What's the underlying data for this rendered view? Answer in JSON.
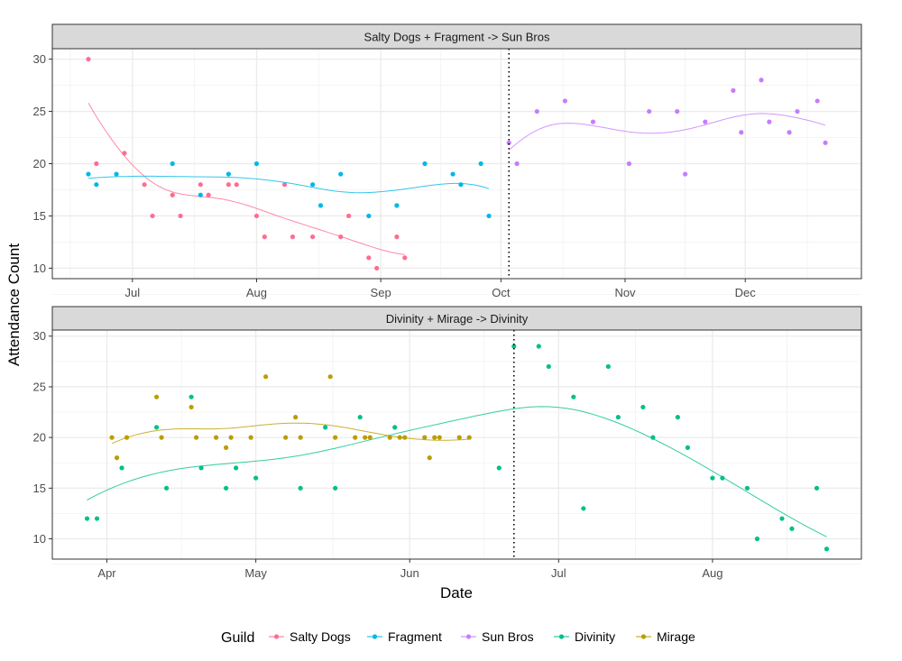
{
  "chart_data": {
    "type": "scatter",
    "xlabel": "Date",
    "ylabel": "Attendance Count",
    "legend": {
      "title": "Guild",
      "placement": "bottom",
      "entries": [
        "Salty Dogs",
        "Fragment",
        "Sun Bros",
        "Divinity",
        "Mirage"
      ]
    },
    "colors": {
      "Salty Dogs": "#FF6C91",
      "Fragment": "#00B8E7",
      "Sun Bros": "#C77CFF",
      "Divinity": "#00C08B",
      "Mirage": "#BB9D00"
    },
    "grid": true,
    "smoothing": "loess",
    "panels": [
      {
        "title": "Salty Dogs + Fragment -> Sun Bros",
        "xlim": [
          "06-11",
          "12-30"
        ],
        "x_ticks": [
          [
            "07-01",
            "Jul"
          ],
          [
            "08-01",
            "Aug"
          ],
          [
            "09-01",
            "Sep"
          ],
          [
            "10-01",
            "Oct"
          ],
          [
            "11-01",
            "Nov"
          ],
          [
            "12-01",
            "Dec"
          ]
        ],
        "y_ticks": [
          10,
          15,
          20,
          25,
          30
        ],
        "ylim": [
          9,
          31
        ],
        "merge_date": "10-03",
        "series": [
          {
            "name": "Salty Dogs",
            "points": [
              [
                "06-20",
                30
              ],
              [
                "06-22",
                20
              ],
              [
                "06-29",
                21
              ],
              [
                "07-04",
                18
              ],
              [
                "07-06",
                15
              ],
              [
                "07-11",
                17
              ],
              [
                "07-13",
                15
              ],
              [
                "07-18",
                18
              ],
              [
                "07-20",
                17
              ],
              [
                "07-25",
                18
              ],
              [
                "07-27",
                18
              ],
              [
                "08-01",
                15
              ],
              [
                "08-03",
                13
              ],
              [
                "08-08",
                18
              ],
              [
                "08-10",
                13
              ],
              [
                "08-15",
                13
              ],
              [
                "08-22",
                13
              ],
              [
                "08-24",
                15
              ],
              [
                "08-29",
                11
              ],
              [
                "08-31",
                10
              ],
              [
                "09-05",
                13
              ],
              [
                "09-07",
                11
              ]
            ]
          },
          {
            "name": "Fragment",
            "points": [
              [
                "06-20",
                19
              ],
              [
                "06-22",
                18
              ],
              [
                "06-27",
                19
              ],
              [
                "07-11",
                20
              ],
              [
                "07-18",
                17
              ],
              [
                "07-25",
                19
              ],
              [
                "08-01",
                20
              ],
              [
                "08-15",
                18
              ],
              [
                "08-17",
                16
              ],
              [
                "08-22",
                19
              ],
              [
                "08-29",
                15
              ],
              [
                "09-05",
                16
              ],
              [
                "09-12",
                20
              ],
              [
                "09-19",
                19
              ],
              [
                "09-21",
                18
              ],
              [
                "09-26",
                20
              ],
              [
                "09-28",
                15
              ]
            ]
          },
          {
            "name": "Sun Bros",
            "points": [
              [
                "10-03",
                22
              ],
              [
                "10-05",
                20
              ],
              [
                "10-10",
                25
              ],
              [
                "10-17",
                26
              ],
              [
                "10-24",
                24
              ],
              [
                "11-02",
                20
              ],
              [
                "11-07",
                25
              ],
              [
                "11-14",
                25
              ],
              [
                "11-16",
                19
              ],
              [
                "11-21",
                24
              ],
              [
                "11-28",
                27
              ],
              [
                "11-30",
                23
              ],
              [
                "12-05",
                28
              ],
              [
                "12-07",
                24
              ],
              [
                "12-12",
                23
              ],
              [
                "12-14",
                25
              ],
              [
                "12-19",
                26
              ],
              [
                "12-21",
                22
              ]
            ]
          }
        ]
      },
      {
        "title": "Divinity + Mirage -> Divinity",
        "xlim": [
          "03-21",
          "08-31"
        ],
        "x_ticks": [
          [
            "04-01",
            "Apr"
          ],
          [
            "05-01",
            "May"
          ],
          [
            "06-01",
            "Jun"
          ],
          [
            "07-01",
            "Jul"
          ],
          [
            "08-01",
            "Aug"
          ]
        ],
        "y_ticks": [
          10,
          15,
          20,
          25,
          30
        ],
        "ylim": [
          8,
          30.6
        ],
        "merge_date": "06-22",
        "series": [
          {
            "name": "Divinity",
            "points": [
              [
                "03-28",
                12
              ],
              [
                "03-30",
                12
              ],
              [
                "04-04",
                17
              ],
              [
                "04-11",
                21
              ],
              [
                "04-13",
                15
              ],
              [
                "04-18",
                24
              ],
              [
                "04-20",
                17
              ],
              [
                "04-25",
                15
              ],
              [
                "04-27",
                17
              ],
              [
                "05-01",
                16
              ],
              [
                "05-10",
                15
              ],
              [
                "05-15",
                21
              ],
              [
                "05-17",
                15
              ],
              [
                "05-22",
                22
              ],
              [
                "05-29",
                21
              ],
              [
                "06-19",
                17
              ],
              [
                "06-22",
                29
              ],
              [
                "06-27",
                29
              ],
              [
                "06-29",
                27
              ],
              [
                "07-04",
                24
              ],
              [
                "07-06",
                13
              ],
              [
                "07-11",
                27
              ],
              [
                "07-13",
                22
              ],
              [
                "07-18",
                23
              ],
              [
                "07-20",
                20
              ],
              [
                "07-25",
                22
              ],
              [
                "07-27",
                19
              ],
              [
                "08-01",
                16
              ],
              [
                "08-03",
                16
              ],
              [
                "08-08",
                15
              ],
              [
                "08-10",
                10
              ],
              [
                "08-15",
                12
              ],
              [
                "08-17",
                11
              ],
              [
                "08-22",
                15
              ],
              [
                "08-24",
                9
              ]
            ]
          },
          {
            "name": "Mirage",
            "points": [
              [
                "04-02",
                20
              ],
              [
                "04-03",
                18
              ],
              [
                "04-05",
                20
              ],
              [
                "04-11",
                24
              ],
              [
                "04-12",
                20
              ],
              [
                "04-18",
                23
              ],
              [
                "04-19",
                20
              ],
              [
                "04-23",
                20
              ],
              [
                "04-25",
                19
              ],
              [
                "04-26",
                20
              ],
              [
                "04-30",
                20
              ],
              [
                "05-03",
                26
              ],
              [
                "05-07",
                20
              ],
              [
                "05-09",
                22
              ],
              [
                "05-10",
                20
              ],
              [
                "05-16",
                26
              ],
              [
                "05-17",
                20
              ],
              [
                "05-21",
                20
              ],
              [
                "05-23",
                20
              ],
              [
                "05-24",
                20
              ],
              [
                "05-28",
                20
              ],
              [
                "05-30",
                20
              ],
              [
                "05-31",
                20
              ],
              [
                "06-04",
                20
              ],
              [
                "06-05",
                18
              ],
              [
                "06-06",
                20
              ],
              [
                "06-07",
                20
              ],
              [
                "06-11",
                20
              ],
              [
                "06-13",
                20
              ]
            ]
          }
        ]
      }
    ]
  }
}
